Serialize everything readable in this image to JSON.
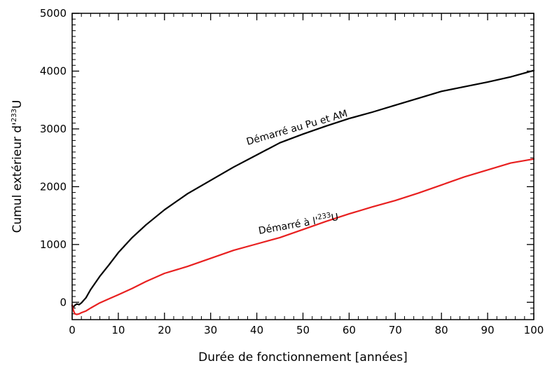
{
  "chart_data": {
    "type": "line",
    "title": "",
    "xlabel": "Durée de fonctionnement [années]",
    "ylabel": {
      "prefix": "Cumul extérieur d'",
      "sup": "233",
      "suffix": "U"
    },
    "xlim": [
      0,
      100
    ],
    "ylim": [
      -300,
      5000
    ],
    "xticks": [
      0,
      10,
      20,
      30,
      40,
      50,
      60,
      70,
      80,
      90,
      100
    ],
    "yticks": [
      0,
      1000,
      2000,
      3000,
      4000,
      5000
    ],
    "grid": false,
    "series": [
      {
        "color": "#000000",
        "x": [
          0,
          0.3,
          0.6,
          1,
          1.5,
          2,
          3,
          4,
          6,
          8,
          10,
          13,
          16,
          20,
          25,
          30,
          35,
          40,
          45,
          50,
          55,
          60,
          65,
          70,
          75,
          80,
          85,
          90,
          95,
          100
        ],
        "y": [
          -60,
          -80,
          -50,
          -30,
          -40,
          -10,
          80,
          220,
          450,
          650,
          860,
          1120,
          1340,
          1600,
          1880,
          2110,
          2340,
          2550,
          2760,
          2910,
          3050,
          3180,
          3290,
          3410,
          3530,
          3650,
          3730,
          3810,
          3900,
          4010
        ]
      },
      {
        "color": "#e82020",
        "x": [
          0,
          0.3,
          0.6,
          1,
          1.5,
          2,
          3,
          4,
          6,
          8,
          10,
          13,
          16,
          20,
          25,
          30,
          35,
          40,
          45,
          50,
          55,
          60,
          65,
          70,
          75,
          80,
          85,
          90,
          95,
          100
        ],
        "y": [
          -50,
          -150,
          -200,
          -210,
          -200,
          -180,
          -150,
          -100,
          -10,
          60,
          130,
          240,
          360,
          500,
          620,
          760,
          900,
          1010,
          1120,
          1260,
          1400,
          1530,
          1650,
          1760,
          1890,
          2030,
          2170,
          2290,
          2410,
          2480
        ]
      }
    ],
    "annotations": [
      {
        "text": "Démarré au Pu et AM",
        "sup": "",
        "suffix": "",
        "x": 38,
        "y": 2720,
        "angle": -16
      },
      {
        "text": "Démarré à l'",
        "sup": "233",
        "suffix": "U",
        "x": 40.5,
        "y": 1180,
        "angle": -10
      }
    ]
  }
}
